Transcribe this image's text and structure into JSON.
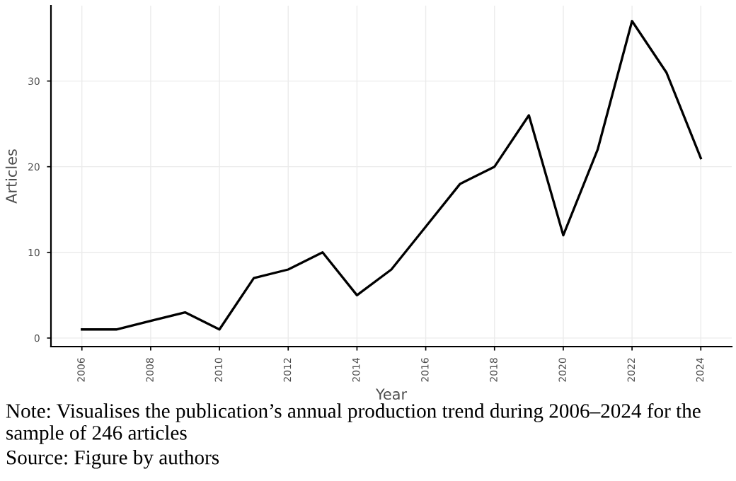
{
  "chart_data": {
    "type": "line",
    "xlabel": "Year",
    "ylabel": "Articles",
    "x": [
      2006,
      2007,
      2008,
      2009,
      2010,
      2011,
      2012,
      2013,
      2014,
      2015,
      2016,
      2017,
      2018,
      2019,
      2020,
      2021,
      2022,
      2023,
      2024
    ],
    "series": [
      {
        "color": "#000000",
        "values": [
          1,
          1,
          2,
          3,
          1,
          7,
          8,
          10,
          5,
          8,
          13,
          18,
          20,
          26,
          12,
          22,
          37,
          31,
          21
        ]
      }
    ],
    "xlim": [
      2005.1,
      2024.9
    ],
    "ylim": [
      -1,
      38.8
    ],
    "xticks": [
      2006,
      2008,
      2010,
      2012,
      2014,
      2016,
      2018,
      2020,
      2022,
      2024
    ],
    "yticks": [
      0,
      10,
      20,
      30
    ],
    "grid": true,
    "marker": "none",
    "line_style": "solid",
    "annotations": [
      "Note: Visualises the publication’s annual production trend during 2006–2024 for the sample of 246 articles",
      "Source: Figure by authors"
    ]
  }
}
